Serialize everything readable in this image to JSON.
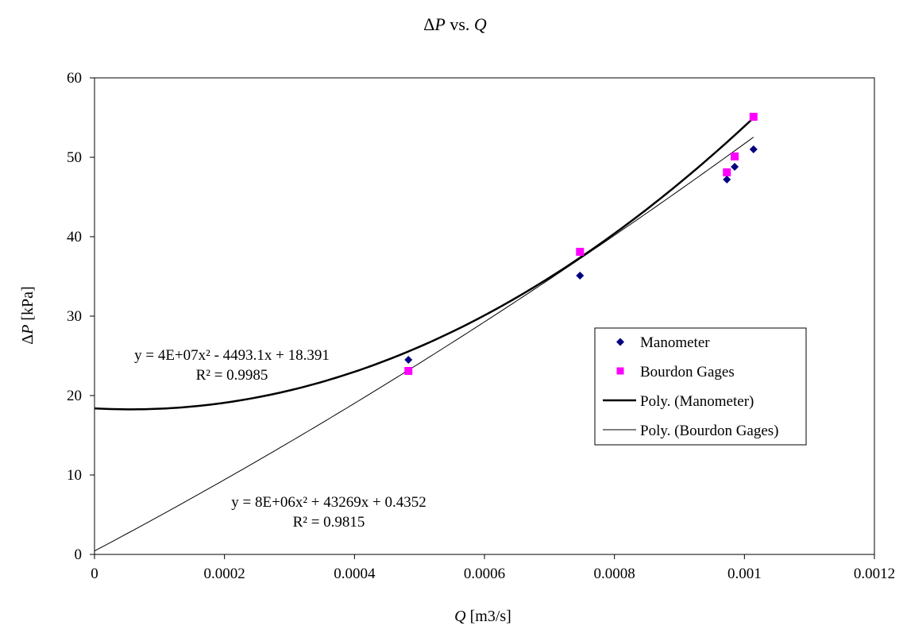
{
  "chart_data": {
    "type": "scatter",
    "title": "ΔP vs. Q",
    "title_parts": {
      "sym1": "Δ",
      "var1": "P",
      "mid": " vs. ",
      "var2": "Q"
    },
    "xlabel": "Q [m3/s]",
    "xlabel_parts": {
      "var": "Q",
      "unit": " [m3/s]"
    },
    "ylabel": "ΔP [kPa]",
    "ylabel_parts": {
      "sym": "Δ",
      "var": "P",
      "unit": " [kPa]"
    },
    "xlim": [
      0,
      0.0012
    ],
    "ylim": [
      0,
      60
    ],
    "x_ticks": [
      "0",
      "0.0002",
      "0.0004",
      "0.0006",
      "0.0008",
      "0.001",
      "0.0012"
    ],
    "y_ticks": [
      "0",
      "10",
      "20",
      "30",
      "40",
      "50",
      "60"
    ],
    "x_tick_values": [
      0,
      0.0002,
      0.0004,
      0.0006,
      0.0008,
      0.001,
      0.0012
    ],
    "y_tick_values": [
      0,
      10,
      20,
      30,
      40,
      50,
      60
    ],
    "grid": false,
    "legend_position": "right",
    "series": [
      {
        "name": "Manometer",
        "marker": "diamond",
        "color": "#000080",
        "points": [
          {
            "x": 0.000483,
            "y": 24.5
          },
          {
            "x": 0.000747,
            "y": 35.1
          },
          {
            "x": 0.000973,
            "y": 47.2
          },
          {
            "x": 0.000985,
            "y": 48.8
          },
          {
            "x": 0.001014,
            "y": 51.0
          }
        ]
      },
      {
        "name": "Bourdon Gages",
        "marker": "square",
        "color": "#FF00FF",
        "points": [
          {
            "x": 0.000483,
            "y": 23.1
          },
          {
            "x": 0.000747,
            "y": 38.1
          },
          {
            "x": 0.000973,
            "y": 48.1
          },
          {
            "x": 0.000985,
            "y": 50.1
          },
          {
            "x": 0.001014,
            "y": 55.1
          }
        ]
      }
    ],
    "trendlines": [
      {
        "name": "Poly. (Manometer)",
        "type": "polynomial",
        "style": "thick",
        "coefficients": [
          40000000,
          -4493.1,
          18.391
        ],
        "x_range": [
          0,
          0.001014
        ],
        "equation_line1": "y = 4E+07x² - 4493.1x + 18.391",
        "equation_line2": "R² = 0.9985"
      },
      {
        "name": "Poly. (Bourdon Gages)",
        "type": "polynomial",
        "style": "thin",
        "coefficients": [
          8000000,
          43269,
          0.4352
        ],
        "x_range": [
          0,
          0.001014
        ],
        "equation_line1": "y = 8E+06x² + 43269x + 0.4352",
        "equation_line2": "R² = 0.9815"
      }
    ],
    "legend": [
      {
        "label": "Manometer",
        "kind": "diamond",
        "color": "#000080"
      },
      {
        "label": "Bourdon Gages",
        "kind": "square",
        "color": "#FF00FF"
      },
      {
        "label": "Poly. (Manometer)",
        "kind": "thick-line",
        "color": "#000000"
      },
      {
        "label": "Poly. (Bourdon Gages)",
        "kind": "thin-line",
        "color": "#000000"
      }
    ]
  }
}
